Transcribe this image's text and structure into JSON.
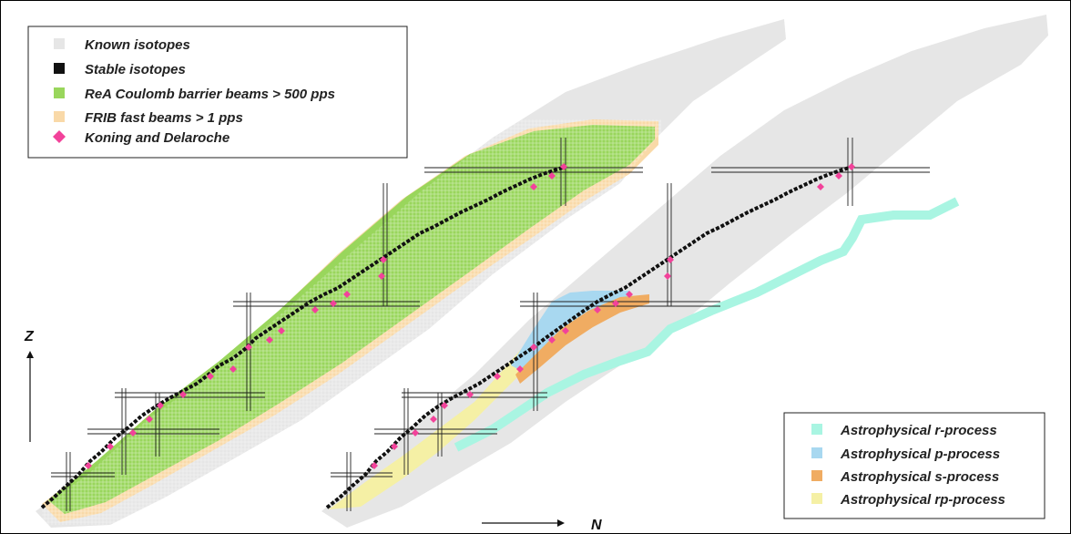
{
  "colors": {
    "known": "#e6e6e6",
    "stable": "#111111",
    "rea": "#99d65c",
    "frib": "#f9d9a8",
    "koning": "#f2429a",
    "r_process": "#a9f5e2",
    "p_process": "#a8d8f0",
    "s_process": "#f0ac62",
    "rp_process": "#f5f0a5"
  },
  "legend_left": [
    {
      "label": "Known isotopes",
      "icon": "square-swatch-known"
    },
    {
      "label": "Stable isotopes",
      "icon": "square-swatch-stable"
    },
    {
      "label": "ReA Coulomb barrier beams > 500 pps",
      "icon": "square-swatch-rea"
    },
    {
      "label": "FRIB fast beams > 1 pps",
      "icon": "square-swatch-frib"
    },
    {
      "label": "Koning and Delaroche",
      "icon": "diamond-marker"
    }
  ],
  "legend_right": [
    {
      "label": "Astrophysical r-process",
      "icon": "square-swatch-r"
    },
    {
      "label": "Astrophysical p-process",
      "icon": "square-swatch-p"
    },
    {
      "label": "Astrophysical s-process",
      "icon": "square-swatch-s"
    },
    {
      "label": "Astrophysical rp-process",
      "icon": "square-swatch-rp"
    }
  ],
  "axes": {
    "y_label": "Z",
    "x_label": "N"
  }
}
